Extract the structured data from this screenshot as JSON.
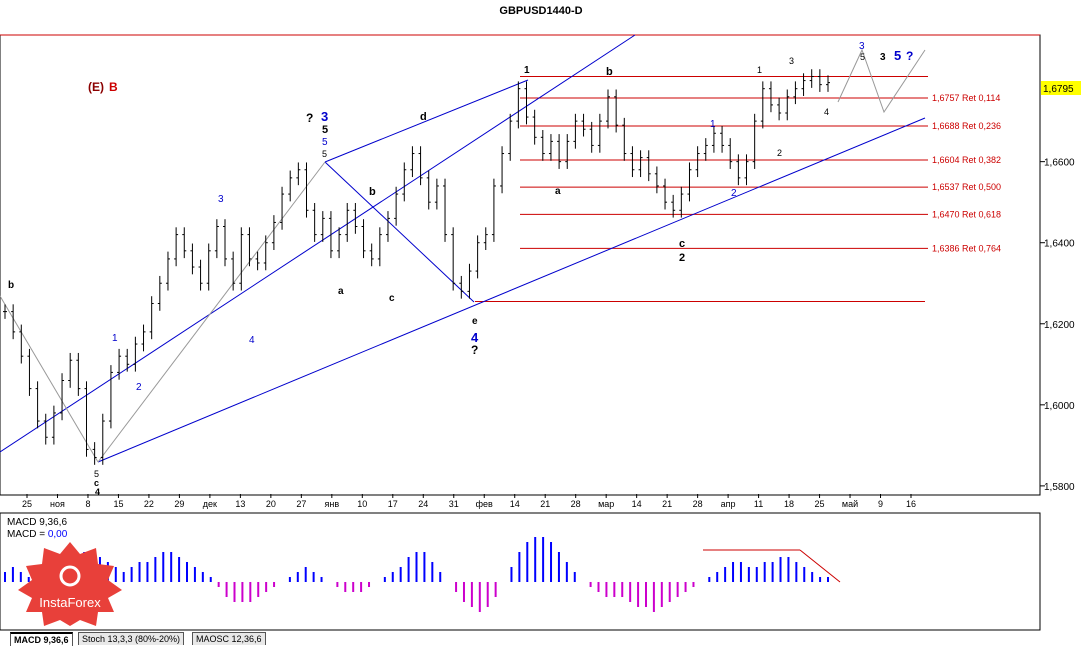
{
  "title": "GBPUSD1440-D",
  "current_price": "1,6795",
  "price_axis_ticks": [
    "1,6600",
    "1,6400",
    "1,6200",
    "1,6000",
    "1,5800"
  ],
  "date_axis_ticks": [
    "25",
    "ноя",
    "8",
    "15",
    "22",
    "29",
    "дек",
    "13",
    "20",
    "27",
    "янв",
    "10",
    "17",
    "24",
    "31",
    "фев",
    "14",
    "21",
    "28",
    "мар",
    "14",
    "21",
    "28",
    "апр",
    "11",
    "18",
    "25",
    "май",
    "9",
    "16"
  ],
  "fib_levels": [
    {
      "price": 1.6757,
      "label": "1,6757 Ret 0,114"
    },
    {
      "price": 1.6688,
      "label": "1,6688 Ret 0,236"
    },
    {
      "price": 1.6604,
      "label": "1,6604 Ret 0,382"
    },
    {
      "price": 1.6537,
      "label": "1,6537 Ret 0,500"
    },
    {
      "price": 1.647,
      "label": "1,6470 Ret 0,618"
    },
    {
      "price": 1.6386,
      "label": "1,6386 Ret 0,764"
    }
  ],
  "wave_labels": {
    "top_left": "(E)",
    "top_left_b": "B",
    "q_mark": "?",
    "w3": "3",
    "w5": "5",
    "w4": "4",
    "w1": "1",
    "w2": "2",
    "wa": "a",
    "wb": "b",
    "wc": "c",
    "wd": "d",
    "we": "e",
    "top_right_3": "3",
    "top_right_5": "5",
    "top_right_q": "?"
  },
  "macd": {
    "label": "MACD 9,36,6",
    "value_label": "MACD = ",
    "value": "0,00"
  },
  "tabs": [
    {
      "label": "MACD 9,36,6",
      "active": true
    },
    {
      "label": "Stoch 13,3,3 (80%-20%)",
      "active": false
    },
    {
      "label": "MAOSC 12,36,6",
      "active": false
    }
  ],
  "logo_text": "InstaForex",
  "colors": {
    "fib": "#cc0000",
    "channel": "#0000cc",
    "macd_positive": "#0000ff",
    "macd_negative": "#cc00cc",
    "price_tag": "#ffff00",
    "logo": "#e8403a"
  },
  "chart_data": {
    "type": "bar",
    "symbol": "GBPUSD",
    "timeframe": "D",
    "ylim": [
      1.578,
      1.691
    ],
    "fib_retracements": [
      1.6757,
      1.6688,
      1.6604,
      1.6537,
      1.647,
      1.6386
    ],
    "last_price": 1.6795,
    "support_line_price": 1.6255,
    "approx_closes": [
      1.623,
      1.618,
      1.612,
      1.604,
      1.596,
      1.592,
      1.598,
      1.606,
      1.611,
      1.604,
      1.589,
      1.587,
      1.596,
      1.608,
      1.612,
      1.61,
      1.615,
      1.618,
      1.625,
      1.63,
      1.636,
      1.642,
      1.638,
      1.634,
      1.63,
      1.638,
      1.644,
      1.636,
      1.63,
      1.642,
      1.636,
      1.635,
      1.64,
      1.645,
      1.652,
      1.656,
      1.658,
      1.648,
      1.642,
      1.646,
      1.638,
      1.642,
      1.648,
      1.644,
      1.638,
      1.636,
      1.642,
      1.646,
      1.652,
      1.658,
      1.662,
      1.656,
      1.65,
      1.654,
      1.642,
      1.63,
      1.628,
      1.633,
      1.64,
      1.642,
      1.654,
      1.662,
      1.67,
      1.678,
      1.671,
      1.666,
      1.662,
      1.665,
      1.66,
      1.665,
      1.67,
      1.668,
      1.664,
      1.67,
      1.676,
      1.669,
      1.662,
      1.658,
      1.661,
      1.657,
      1.654,
      1.65,
      1.648,
      1.652,
      1.658,
      1.662,
      1.664,
      1.667,
      1.664,
      1.66,
      1.656,
      1.66,
      1.67,
      1.678,
      1.674,
      1.672,
      1.676,
      1.678,
      1.68,
      1.681,
      1.679,
      1.6795
    ],
    "macd_histogram": [
      2,
      3,
      2,
      1,
      0,
      -1,
      1,
      2,
      3,
      5,
      6,
      6,
      5,
      4,
      3,
      2,
      3,
      4,
      4,
      5,
      6,
      6,
      5,
      4,
      3,
      2,
      1,
      -1,
      -3,
      -4,
      -4,
      -4,
      -3,
      -2,
      -1,
      0,
      1,
      2,
      3,
      2,
      1,
      0,
      -1,
      -2,
      -2,
      -2,
      -1,
      0,
      1,
      2,
      3,
      5,
      6,
      6,
      4,
      2,
      0,
      -2,
      -4,
      -5,
      -6,
      -5,
      -3,
      0,
      3,
      6,
      8,
      9,
      9,
      8,
      6,
      4,
      2,
      0,
      -1,
      -2,
      -3,
      -3,
      -3,
      -4,
      -5,
      -5,
      -6,
      -5,
      -4,
      -3,
      -2,
      -1,
      0,
      1,
      2,
      3,
      4,
      4,
      3,
      3,
      4,
      4,
      5,
      5,
      4,
      3,
      2,
      1,
      1
    ]
  }
}
